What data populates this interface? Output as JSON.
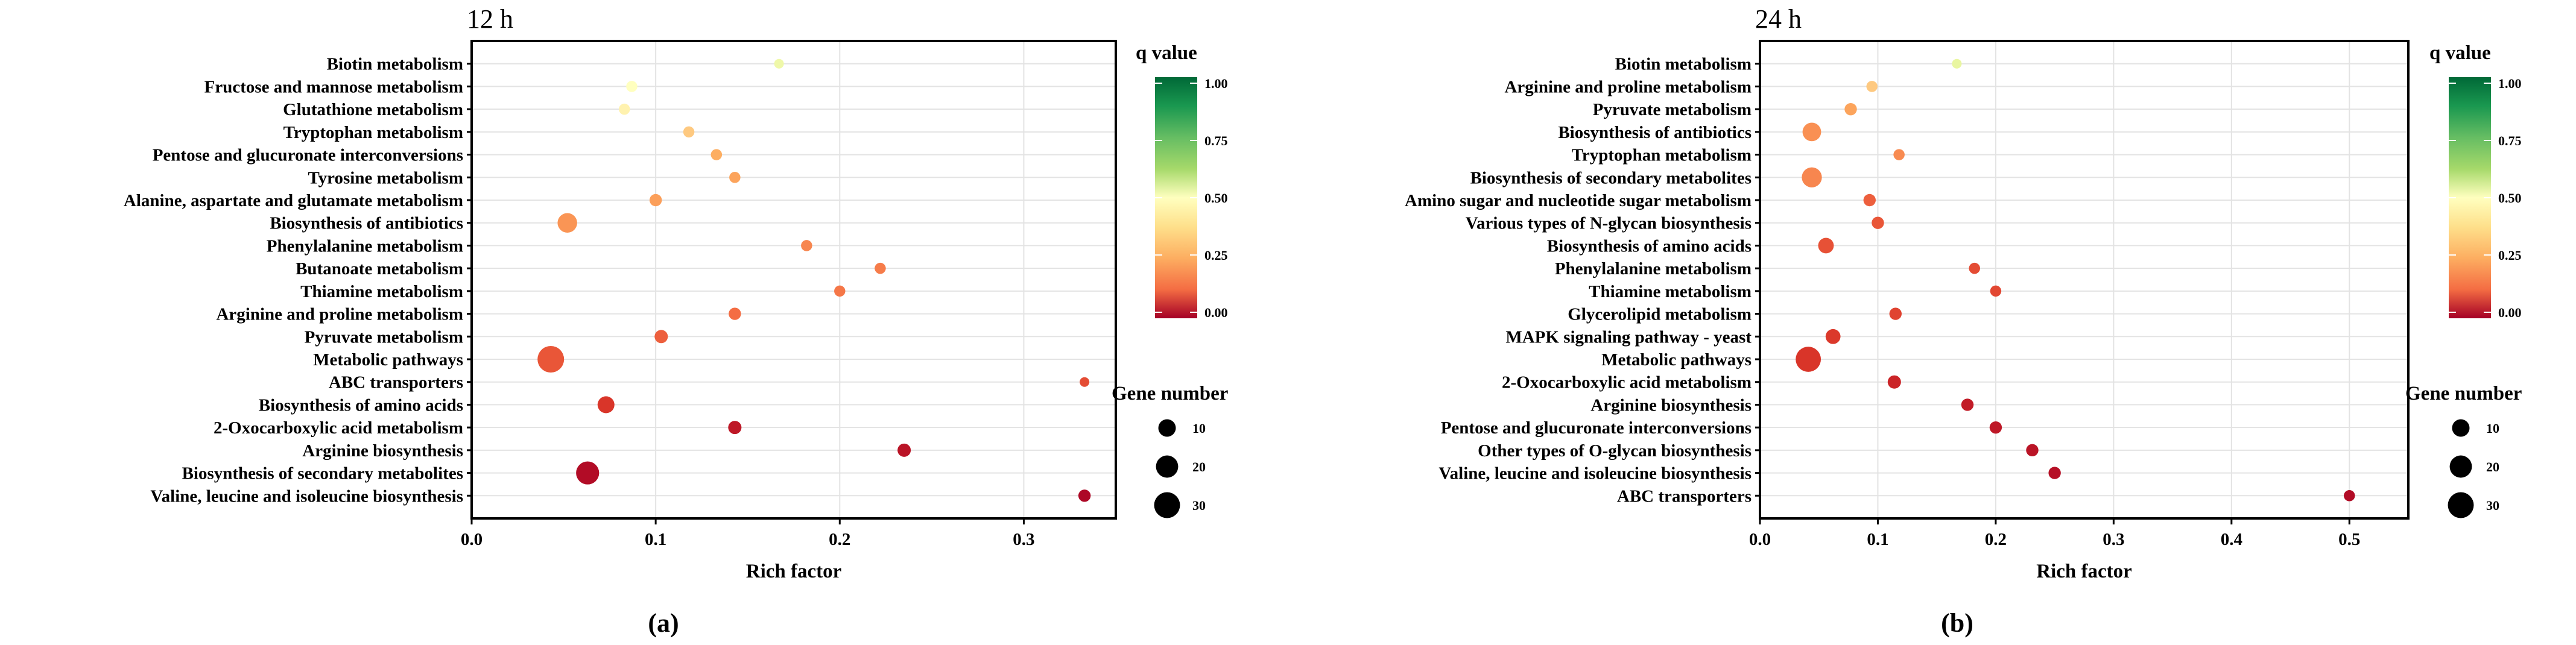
{
  "chart_data": [
    {
      "type": "scatter",
      "title": "12 h",
      "panel_label": "(a)",
      "xlabel": "Rich factor",
      "ylabel": "",
      "xlim": [
        0,
        0.35
      ],
      "xticks": [
        0.0,
        0.1,
        0.2,
        0.3
      ],
      "xtick_labels": [
        "0.0",
        "0.1",
        "0.2",
        "0.3"
      ],
      "color_legend": {
        "title": "q value",
        "ticks": [
          "1.00",
          "0.75",
          "0.50",
          "0.25",
          "0.00"
        ],
        "min": 0,
        "max": 1
      },
      "size_legend": {
        "title": "Gene number",
        "values": [
          10,
          20,
          30
        ]
      },
      "points": [
        {
          "pathway": "Biotin metabolism",
          "rich_factor": 0.167,
          "gene_number": 1,
          "q_value": 0.55
        },
        {
          "pathway": "Fructose and mannose metabolism",
          "rich_factor": 0.087,
          "gene_number": 2,
          "q_value": 0.5
        },
        {
          "pathway": "Glutathione metabolism",
          "rich_factor": 0.083,
          "gene_number": 2,
          "q_value": 0.48
        },
        {
          "pathway": "Tryptophan metabolism",
          "rich_factor": 0.118,
          "gene_number": 2,
          "q_value": 0.42
        },
        {
          "pathway": "Pentose and glucuronate interconversions",
          "rich_factor": 0.133,
          "gene_number": 2,
          "q_value": 0.38
        },
        {
          "pathway": "Tyrosine metabolism",
          "rich_factor": 0.143,
          "gene_number": 2,
          "q_value": 0.36
        },
        {
          "pathway": "Alanine, aspartate and glutamate metabolism",
          "rich_factor": 0.1,
          "gene_number": 3,
          "q_value": 0.35
        },
        {
          "pathway": "Biosynthesis of antibiotics",
          "rich_factor": 0.052,
          "gene_number": 14,
          "q_value": 0.33
        },
        {
          "pathway": "Phenylalanine metabolism",
          "rich_factor": 0.182,
          "gene_number": 2,
          "q_value": 0.3
        },
        {
          "pathway": "Butanoate metabolism",
          "rich_factor": 0.222,
          "gene_number": 2,
          "q_value": 0.28
        },
        {
          "pathway": "Thiamine metabolism",
          "rich_factor": 0.2,
          "gene_number": 2,
          "q_value": 0.27
        },
        {
          "pathway": "Arginine and proline metabolism",
          "rich_factor": 0.143,
          "gene_number": 3,
          "q_value": 0.25
        },
        {
          "pathway": "Pyruvate metabolism",
          "rich_factor": 0.103,
          "gene_number": 4,
          "q_value": 0.22
        },
        {
          "pathway": "Metabolic pathways",
          "rich_factor": 0.043,
          "gene_number": 32,
          "q_value": 0.2
        },
        {
          "pathway": "ABC transporters",
          "rich_factor": 0.333,
          "gene_number": 1,
          "q_value": 0.18
        },
        {
          "pathway": "Biosynthesis of amino acids",
          "rich_factor": 0.073,
          "gene_number": 9,
          "q_value": 0.13
        },
        {
          "pathway": "2-Oxocarboxylic acid metabolism",
          "rich_factor": 0.143,
          "gene_number": 4,
          "q_value": 0.06
        },
        {
          "pathway": "Arginine biosynthesis",
          "rich_factor": 0.235,
          "gene_number": 4,
          "q_value": 0.05
        },
        {
          "pathway": "Biosynthesis of secondary metabolites",
          "rich_factor": 0.063,
          "gene_number": 22,
          "q_value": 0.03
        },
        {
          "pathway": "Valine, leucine and isoleucine biosynthesis",
          "rich_factor": 0.333,
          "gene_number": 3,
          "q_value": 0.02
        }
      ]
    },
    {
      "type": "scatter",
      "title": "24 h",
      "panel_label": "(b)",
      "xlabel": "Rich factor",
      "ylabel": "",
      "xlim": [
        0,
        0.55
      ],
      "xticks": [
        0.0,
        0.1,
        0.2,
        0.3,
        0.4,
        0.5
      ],
      "xtick_labels": [
        "0.0",
        "0.1",
        "0.2",
        "0.3",
        "0.4",
        "0.5"
      ],
      "color_legend": {
        "title": "q value",
        "ticks": [
          "1.00",
          "0.75",
          "0.50",
          "0.25",
          "0.00"
        ],
        "min": 0,
        "max": 1
      },
      "size_legend": {
        "title": "Gene number",
        "values": [
          10,
          20,
          30
        ]
      },
      "points": [
        {
          "pathway": "Biotin metabolism",
          "rich_factor": 0.167,
          "gene_number": 1,
          "q_value": 0.57
        },
        {
          "pathway": "Arginine and proline metabolism",
          "rich_factor": 0.095,
          "gene_number": 2,
          "q_value": 0.42
        },
        {
          "pathway": "Pyruvate metabolism",
          "rich_factor": 0.077,
          "gene_number": 3,
          "q_value": 0.36
        },
        {
          "pathway": "Biosynthesis of antibiotics",
          "rich_factor": 0.044,
          "gene_number": 12,
          "q_value": 0.32
        },
        {
          "pathway": "Tryptophan metabolism",
          "rich_factor": 0.118,
          "gene_number": 2,
          "q_value": 0.31
        },
        {
          "pathway": "Biosynthesis of secondary metabolites",
          "rich_factor": 0.044,
          "gene_number": 15,
          "q_value": 0.3
        },
        {
          "pathway": "Amino sugar and nucleotide sugar metabolism",
          "rich_factor": 0.093,
          "gene_number": 3,
          "q_value": 0.22
        },
        {
          "pathway": "Various types of N-glycan biosynthesis",
          "rich_factor": 0.1,
          "gene_number": 3,
          "q_value": 0.2
        },
        {
          "pathway": "Biosynthesis of amino acids",
          "rich_factor": 0.056,
          "gene_number": 7,
          "q_value": 0.19
        },
        {
          "pathway": "Phenylalanine metabolism",
          "rich_factor": 0.182,
          "gene_number": 2,
          "q_value": 0.18
        },
        {
          "pathway": "Thiamine metabolism",
          "rich_factor": 0.2,
          "gene_number": 2,
          "q_value": 0.17
        },
        {
          "pathway": "Glycerolipid metabolism",
          "rich_factor": 0.115,
          "gene_number": 3,
          "q_value": 0.16
        },
        {
          "pathway": "MAPK signaling pathway - yeast",
          "rich_factor": 0.062,
          "gene_number": 6,
          "q_value": 0.14
        },
        {
          "pathway": "Metabolic pathways",
          "rich_factor": 0.041,
          "gene_number": 28,
          "q_value": 0.13
        },
        {
          "pathway": "2-Oxocarboxylic acid metabolism",
          "rich_factor": 0.114,
          "gene_number": 4,
          "q_value": 0.09
        },
        {
          "pathway": "Arginine biosynthesis",
          "rich_factor": 0.176,
          "gene_number": 3,
          "q_value": 0.07
        },
        {
          "pathway": "Pentose and glucuronate interconversions",
          "rich_factor": 0.2,
          "gene_number": 3,
          "q_value": 0.06
        },
        {
          "pathway": "Other types of O-glycan biosynthesis",
          "rich_factor": 0.231,
          "gene_number": 3,
          "q_value": 0.05
        },
        {
          "pathway": "Valine, leucine and isoleucine biosynthesis",
          "rich_factor": 0.25,
          "gene_number": 3,
          "q_value": 0.04
        },
        {
          "pathway": "ABC transporters",
          "rich_factor": 0.5,
          "gene_number": 2,
          "q_value": 0.03
        }
      ]
    }
  ]
}
